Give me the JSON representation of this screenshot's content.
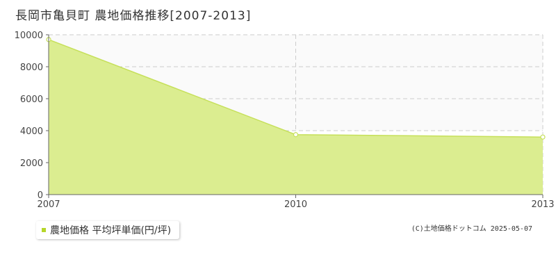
{
  "chart_data": {
    "type": "area",
    "title": "長岡市亀貝町 農地価格推移[2007-2013]",
    "xlabel": "",
    "ylabel": "",
    "x": [
      2007,
      2010,
      2013
    ],
    "x_ticks": [
      "2007",
      "2010",
      "2013"
    ],
    "y_ticks": [
      "0",
      "2000",
      "4000",
      "6000",
      "8000",
      "10000"
    ],
    "ylim": [
      0,
      10000
    ],
    "xlim": [
      2007,
      2013
    ],
    "grid": true,
    "legend_position": "bottom-left",
    "series": [
      {
        "name": "農地価格 平均坪単価(円/坪)",
        "values": [
          9700,
          3750,
          3600
        ],
        "fill_color": "#dbed90",
        "line_color": "#c6e05a",
        "marker_color": "#b5d62a"
      }
    ]
  },
  "copyright": "(C)土地価格ドットコム 2025-05-07"
}
